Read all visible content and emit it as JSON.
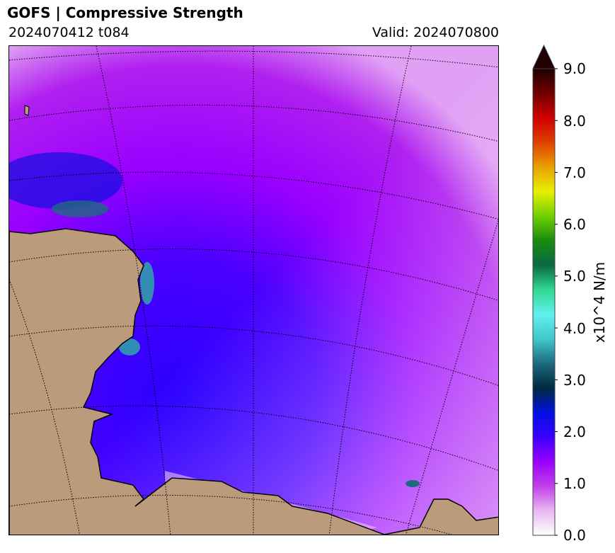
{
  "header": {
    "title": "GOFS  |  Compressive Strength",
    "run_label": "2024070412 t084",
    "valid_label": "Valid: 2024070800"
  },
  "colorbar": {
    "label": "x10^4 N/m",
    "min": 0,
    "max": 9,
    "extend": "max",
    "ticks": [
      "0.0",
      "1.0",
      "2.0",
      "3.0",
      "4.0",
      "5.0",
      "6.0",
      "7.0",
      "8.0",
      "9.0"
    ],
    "colors": [
      "#ffffff",
      "#e8b8f0",
      "#c040e8",
      "#9a00ff",
      "#3a00ff",
      "#0010e0",
      "#002a40",
      "#1e6a80",
      "#40c8c8",
      "#60f0f0",
      "#30d890",
      "#0a6a40",
      "#1a8a10",
      "#70d000",
      "#e8f000",
      "#e8a000",
      "#e04000",
      "#d00000",
      "#700000",
      "#200000"
    ]
  },
  "map": {
    "land_color": "#bc9a7c",
    "ice_color": "#b000ff"
  }
}
